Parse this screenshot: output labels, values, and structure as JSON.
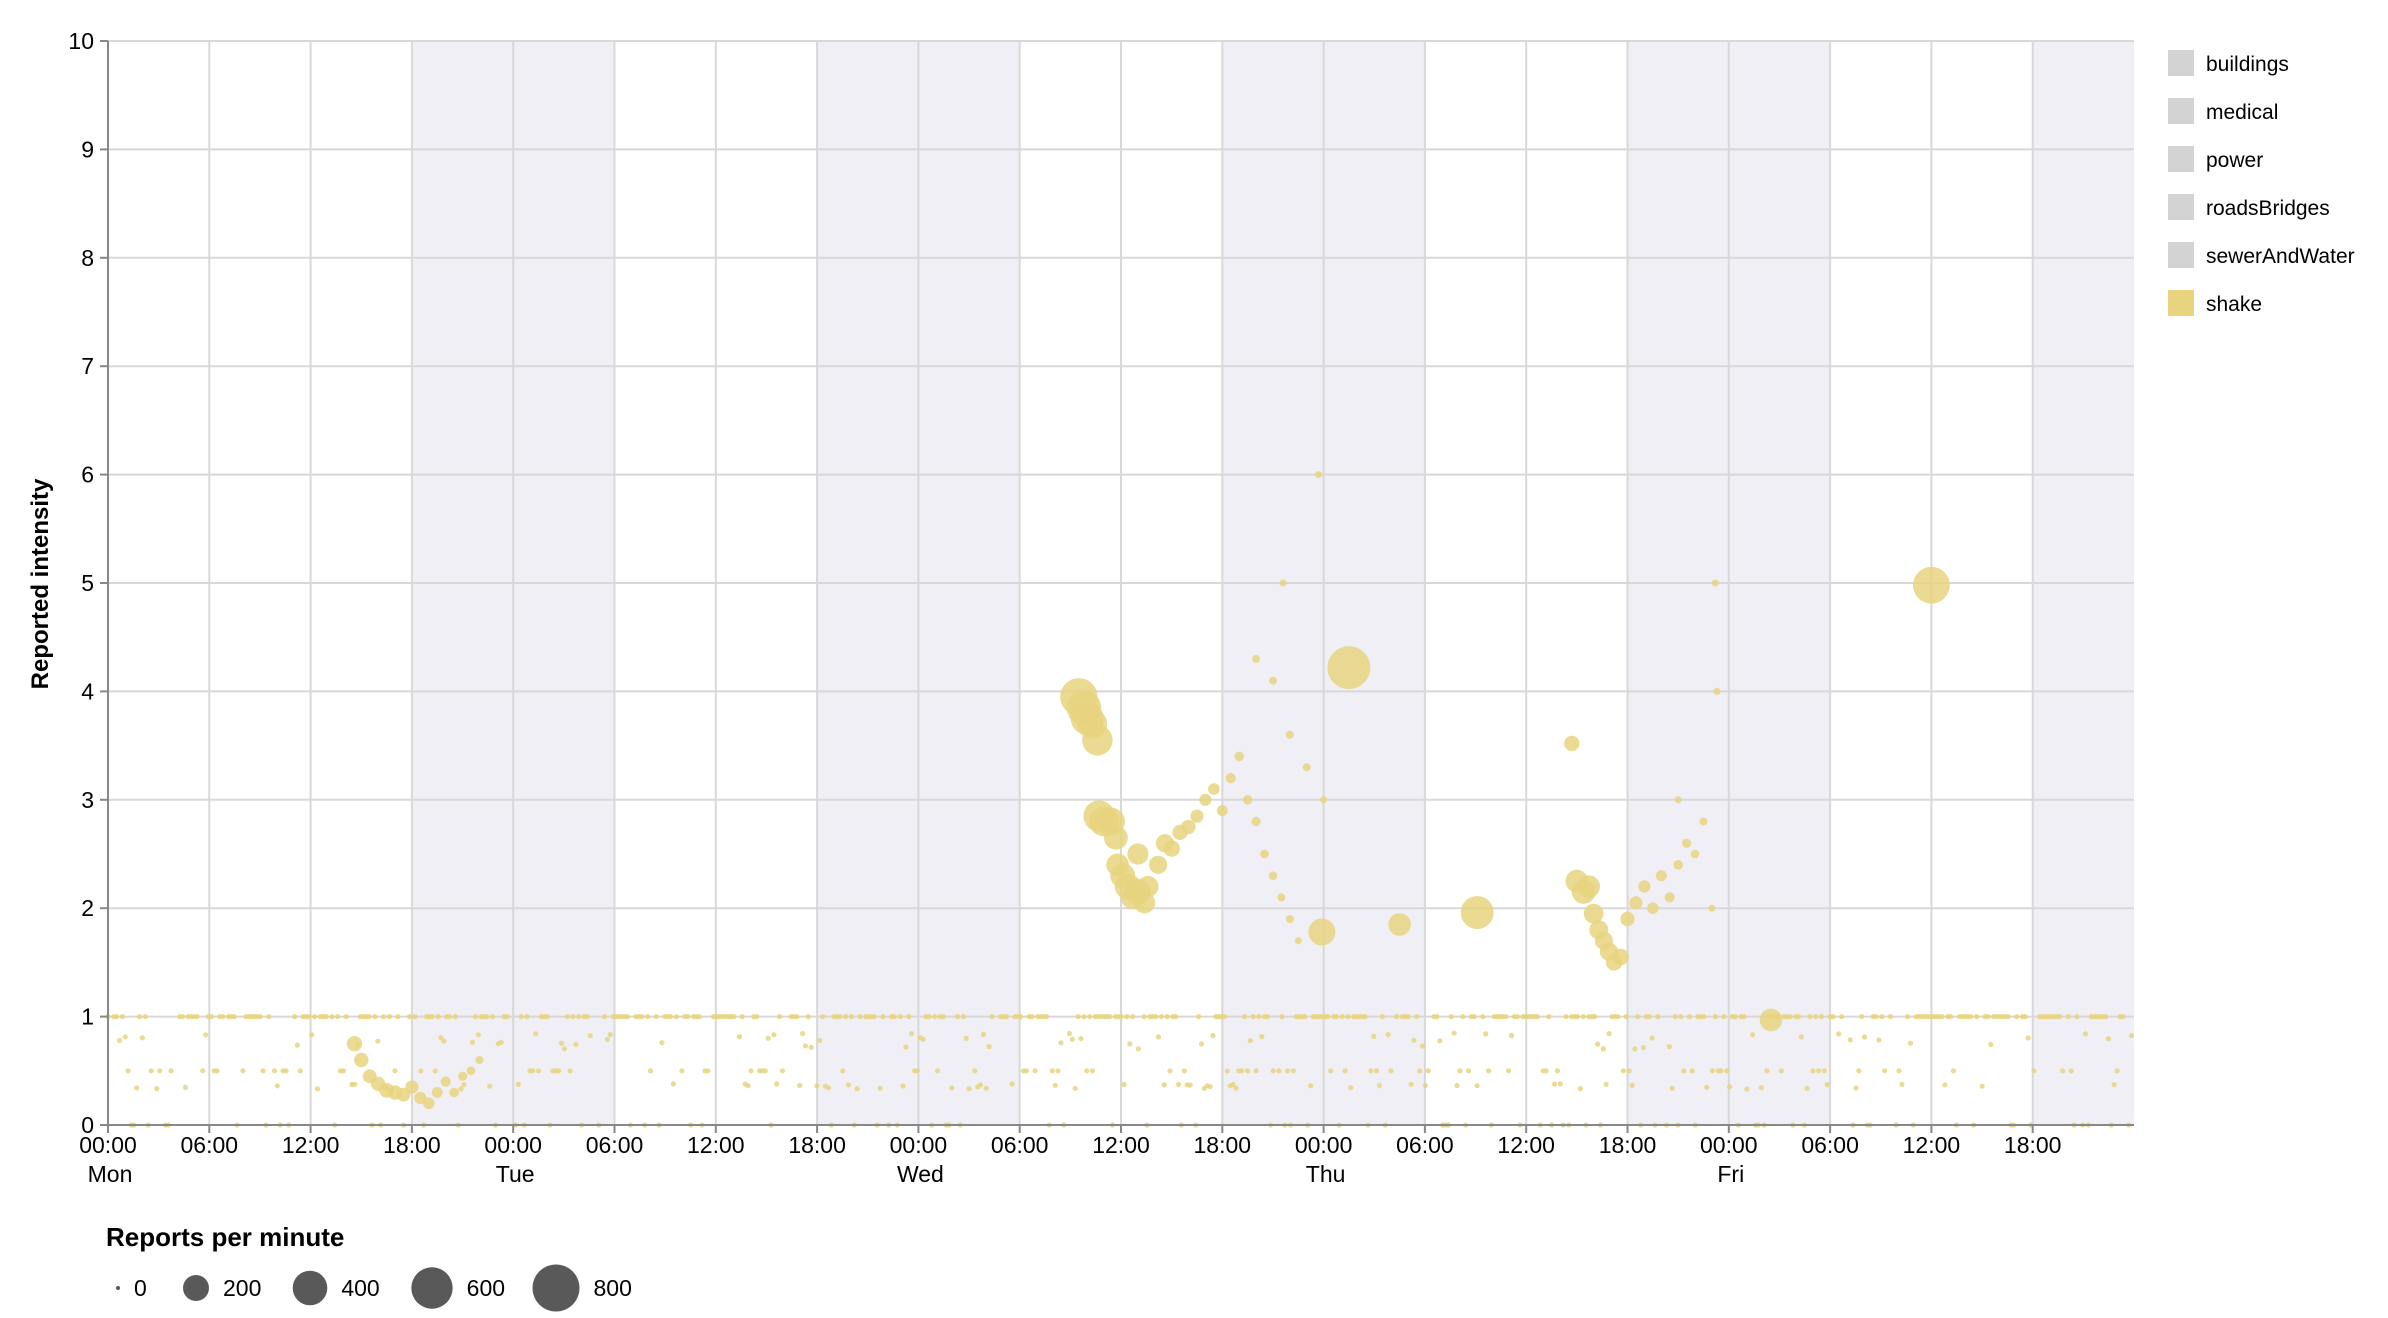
{
  "chart_data": {
    "type": "scatter",
    "ylabel": "Reported intensity",
    "ylim": [
      0,
      10
    ],
    "xlim": [
      "Mon 00:00",
      "Sat 00:00"
    ],
    "y_ticks": [
      "0",
      "1",
      "2",
      "3",
      "4",
      "5",
      "6",
      "7",
      "8",
      "9",
      "10"
    ],
    "x_ticks": [
      "00:00",
      "06:00",
      "12:00",
      "18:00",
      "00:00",
      "06:00",
      "12:00",
      "18:00",
      "00:00",
      "06:00",
      "12:00",
      "18:00",
      "00:00",
      "06:00",
      "12:00",
      "18:00",
      "00:00",
      "06:00",
      "12:00",
      "18:00"
    ],
    "day_labels": [
      "Mon",
      "Tue",
      "Wed",
      "Thu",
      "Fri"
    ],
    "grid": true,
    "night_shading": true,
    "legend": {
      "position": "top-right",
      "items": [
        {
          "label": "buildings",
          "color": "#d3d3d3"
        },
        {
          "label": "medical",
          "color": "#d3d3d3"
        },
        {
          "label": "power",
          "color": "#d3d3d3"
        },
        {
          "label": "roadsBridges",
          "color": "#d3d3d3"
        },
        {
          "label": "sewerAndWater",
          "color": "#d3d3d3"
        },
        {
          "label": "shake",
          "color": "#e8d47f"
        }
      ]
    },
    "size_legend": {
      "title": "Reports per minute",
      "values": [
        0,
        200,
        400,
        600,
        800
      ],
      "labels": [
        "0",
        "200",
        "400",
        "600",
        "800"
      ]
    },
    "series": [
      {
        "name": "shake",
        "color": "#e8d47f",
        "points_hour_intensity_reports": [
          [
            57.5,
            3.95,
            240
          ],
          [
            57.8,
            3.85,
            200
          ],
          [
            58.0,
            3.75,
            180
          ],
          [
            58.3,
            3.7,
            140
          ],
          [
            58.6,
            3.55,
            150
          ],
          [
            58.7,
            2.85,
            160
          ],
          [
            59.0,
            2.8,
            140
          ],
          [
            59.4,
            2.8,
            120
          ],
          [
            59.7,
            2.65,
            80
          ],
          [
            59.8,
            2.4,
            70
          ],
          [
            60.1,
            2.3,
            90
          ],
          [
            60.4,
            2.2,
            100
          ],
          [
            60.7,
            2.1,
            80
          ],
          [
            61.0,
            2.15,
            100
          ],
          [
            61.4,
            2.05,
            60
          ],
          [
            61.0,
            2.5,
            60
          ],
          [
            61.6,
            2.2,
            60
          ],
          [
            62.2,
            2.4,
            40
          ],
          [
            62.6,
            2.6,
            40
          ],
          [
            63.0,
            2.55,
            30
          ],
          [
            63.5,
            2.7,
            25
          ],
          [
            64.0,
            2.75,
            20
          ],
          [
            64.5,
            2.85,
            15
          ],
          [
            65.0,
            3.0,
            12
          ],
          [
            65.5,
            3.1,
            10
          ],
          [
            66.0,
            2.9,
            8
          ],
          [
            66.5,
            3.2,
            6
          ],
          [
            67.0,
            3.4,
            5
          ],
          [
            67.5,
            3.0,
            5
          ],
          [
            68.0,
            2.8,
            4
          ],
          [
            68.5,
            2.5,
            3
          ],
          [
            69.0,
            2.3,
            3
          ],
          [
            69.5,
            2.1,
            2
          ],
          [
            70.0,
            1.9,
            2
          ],
          [
            70.5,
            1.7,
            1
          ],
          [
            71.9,
            1.78,
            110
          ],
          [
            73.5,
            4.22,
            330
          ],
          [
            76.5,
            1.85,
            70
          ],
          [
            81.1,
            1.96,
            180
          ],
          [
            86.7,
            3.52,
            25
          ],
          [
            87.0,
            2.25,
            70
          ],
          [
            87.4,
            2.15,
            80
          ],
          [
            87.7,
            2.2,
            70
          ],
          [
            88.0,
            1.95,
            50
          ],
          [
            88.3,
            1.8,
            45
          ],
          [
            88.6,
            1.7,
            40
          ],
          [
            88.9,
            1.6,
            40
          ],
          [
            89.2,
            1.5,
            30
          ],
          [
            89.6,
            1.55,
            30
          ],
          [
            90.0,
            1.9,
            20
          ],
          [
            90.5,
            2.05,
            15
          ],
          [
            91.0,
            2.2,
            12
          ],
          [
            91.5,
            2.0,
            10
          ],
          [
            92.0,
            2.3,
            8
          ],
          [
            92.5,
            2.1,
            6
          ],
          [
            93.0,
            2.4,
            5
          ],
          [
            93.5,
            2.6,
            4
          ],
          [
            94.0,
            2.5,
            3
          ],
          [
            94.5,
            2.8,
            2
          ],
          [
            98.5,
            0.97,
            70
          ],
          [
            108.0,
            4.98,
            230
          ],
          [
            14.6,
            0.75,
            25
          ],
          [
            15.0,
            0.6,
            20
          ],
          [
            15.5,
            0.45,
            18
          ],
          [
            16.0,
            0.38,
            20
          ],
          [
            16.5,
            0.32,
            22
          ],
          [
            17.0,
            0.3,
            20
          ],
          [
            17.5,
            0.28,
            18
          ],
          [
            18.0,
            0.35,
            15
          ],
          [
            18.5,
            0.25,
            12
          ],
          [
            19.0,
            0.2,
            10
          ],
          [
            19.5,
            0.3,
            8
          ],
          [
            20.0,
            0.4,
            6
          ],
          [
            20.5,
            0.3,
            5
          ],
          [
            21.0,
            0.45,
            4
          ],
          [
            21.5,
            0.5,
            3
          ],
          [
            22.0,
            0.6,
            2
          ],
          [
            68.0,
            4.3,
            2
          ],
          [
            69.0,
            4.1,
            2
          ],
          [
            70.0,
            3.6,
            2
          ],
          [
            71.0,
            3.3,
            2
          ],
          [
            72.0,
            3.0,
            1
          ],
          [
            69.6,
            5.0,
            1
          ],
          [
            71.7,
            6.0,
            1
          ],
          [
            93.0,
            3.0,
            1
          ],
          [
            95.2,
            5.0,
            1
          ],
          [
            95.3,
            4.0,
            1
          ],
          [
            95.0,
            2.0,
            1
          ]
        ]
      }
    ]
  }
}
